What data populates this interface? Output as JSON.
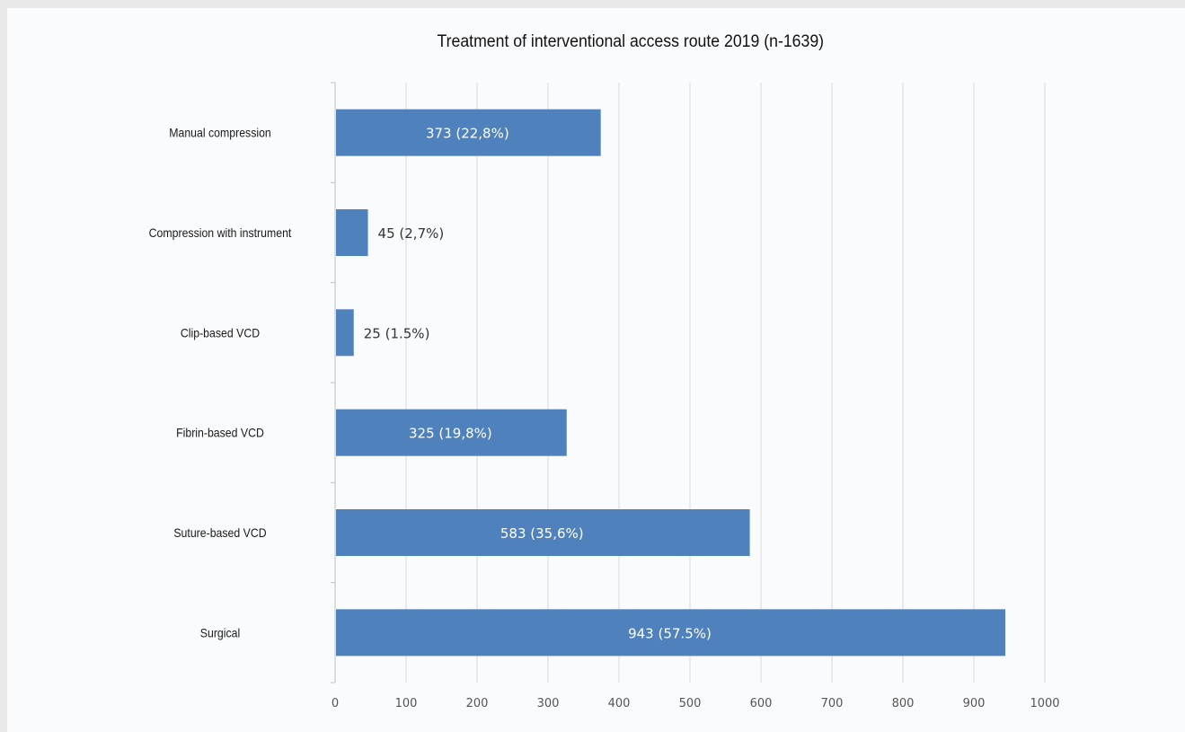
{
  "chart_data": {
    "type": "bar",
    "orientation": "horizontal",
    "title": "Treatment of interventional access route 2019 (n-1639)",
    "categories": [
      "Manual compression",
      "Compression with instrument",
      "Clip-based VCD",
      "Fibrin-based VCD",
      "Suture-based VCD",
      "Surgical"
    ],
    "values": [
      373,
      45,
      25,
      325,
      583,
      943
    ],
    "data_labels": [
      "373 (22,8%)",
      "45 (2,7%)",
      "25 (1.5%)",
      "325 (19,8%)",
      "583 (35,6%)",
      "943 (57.5%)"
    ],
    "xlim": [
      0,
      1000
    ],
    "xticks": [
      "0",
      "100",
      "200",
      "300",
      "400",
      "500",
      "600",
      "700",
      "800",
      "900",
      "1000"
    ],
    "xlabel": "",
    "ylabel": "",
    "grid": "vertical",
    "legend": "none",
    "colors": {
      "bar": "#4f81bd",
      "label_inside": "#ffffff",
      "label_outside": "#333333",
      "grid": "#d9d9d9",
      "axis": "#bfbfbf"
    }
  }
}
